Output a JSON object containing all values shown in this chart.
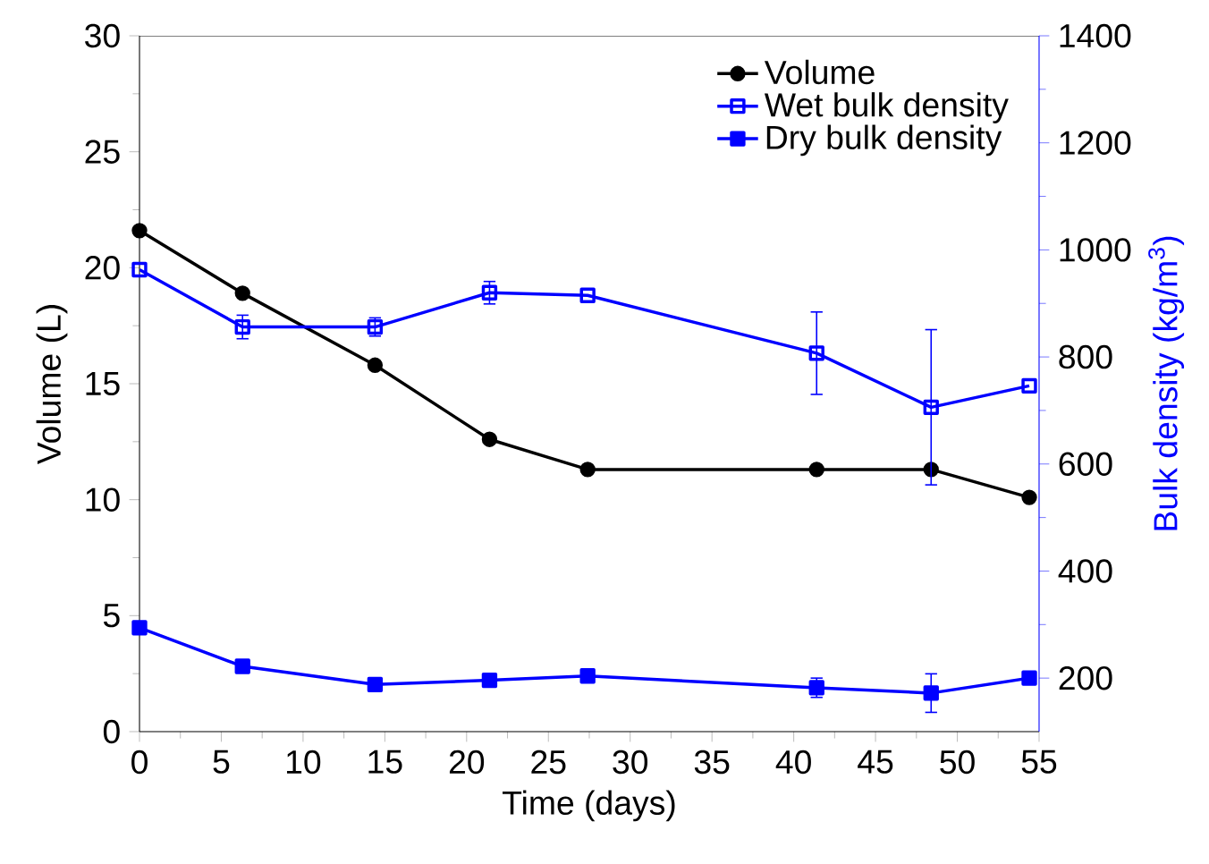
{
  "chart_data": {
    "type": "line",
    "xlabel": "Time (days)",
    "ylabel": "Volume (L)",
    "y2label": "Bulk density (kg/m$^{3}$)",
    "xlim": [
      0,
      55
    ],
    "xticks": [
      0,
      5,
      10,
      15,
      20,
      25,
      30,
      35,
      40,
      45,
      50,
      55
    ],
    "ylim": [
      0,
      30
    ],
    "yticks": [
      0,
      5,
      10,
      15,
      20,
      25,
      30
    ],
    "y2lim": [
      100,
      1400
    ],
    "y2ticks": [
      200,
      400,
      600,
      800,
      1000,
      1200,
      1400
    ],
    "x": [
      0,
      6.3,
      14.4,
      21.4,
      27.4,
      41.4,
      48.4,
      54.4
    ],
    "legend": "top right",
    "grid": false,
    "line_style": "solid",
    "series": [
      {
        "name": "Volume",
        "color": "#000000",
        "marker": "circle",
        "values": [
          21.6,
          18.9,
          15.8,
          12.6,
          11.3,
          11.3,
          11.3,
          10.1
        ]
      },
      {
        "name": "Wet bulk density",
        "color": "#0000ff",
        "marker": "square",
        "axis": "y2",
        "values": [
          963,
          856,
          856,
          920,
          915,
          807,
          706,
          746
        ],
        "errors": [
          null,
          22,
          17,
          21,
          null,
          77,
          145,
          null
        ]
      },
      {
        "name": "Dry bulk density",
        "color": "#0000ff",
        "marker": "square",
        "axis": "y2",
        "values": [
          294,
          222,
          188,
          196,
          204,
          182,
          172,
          200
        ],
        "errors": [
          null,
          null,
          null,
          null,
          null,
          18,
          36,
          null
        ]
      }
    ]
  }
}
